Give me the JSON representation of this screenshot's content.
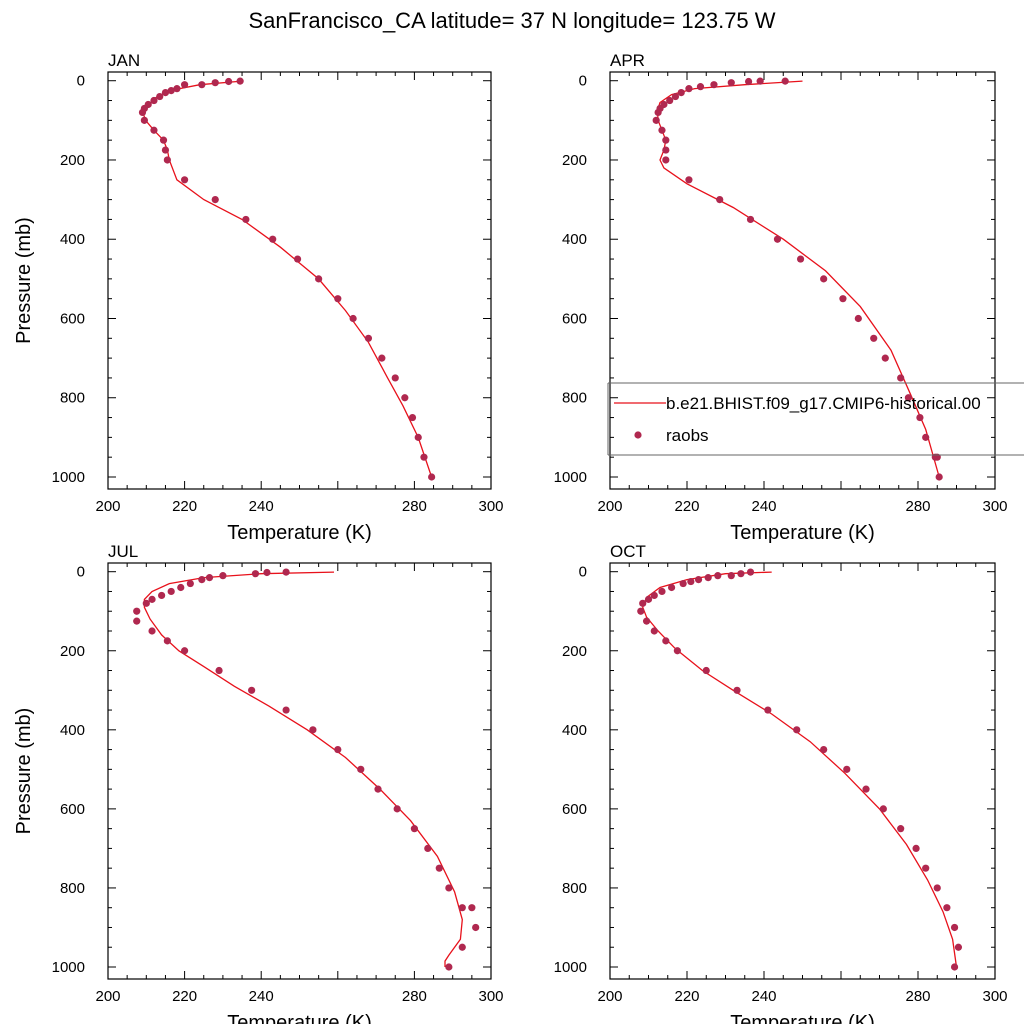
{
  "title": "SanFrancisco_CA  latitude= 37 N longitude= 123.75 W",
  "legend": {
    "line_label": "b.e21.BHIST.f09_g17.CMIP6-historical.00",
    "marker_label": "raobs"
  },
  "colors": {
    "line": "#e8111b",
    "marker": "#b0284f"
  },
  "chart_data": [
    {
      "type": "line",
      "title": "JAN",
      "xlabel": "Temperature (K)",
      "ylabel": "Pressure (mb)",
      "xlim": [
        200,
        300
      ],
      "ylim": [
        1000,
        0
      ],
      "x_ticks": [
        "200",
        "220",
        "240",
        "280",
        "300"
      ],
      "y_ticks": [
        "0",
        "200",
        "400",
        "600",
        "800",
        "1000"
      ],
      "series": [
        {
          "name": "b.e21.BHIST.f09_g17.CMIP6-historical.00",
          "type": "line",
          "x": [
            235.0,
            224.0,
            216.0,
            212.0,
            210.0,
            209.3,
            209.8,
            212.0,
            214.5,
            215.5,
            216.0,
            218.0,
            225.0,
            235.0,
            245.0,
            255.0,
            262.0,
            268.0,
            273.0,
            277.0,
            281.0,
            284.5
          ],
          "y": [
            1,
            10,
            25,
            45,
            70,
            85,
            100,
            125,
            150,
            175,
            200,
            250,
            300,
            350,
            420,
            500,
            580,
            660,
            750,
            820,
            900,
            1000
          ]
        },
        {
          "name": "raobs",
          "type": "scatter",
          "x": [
            234.5,
            231.5,
            228.0,
            224.5,
            220.0,
            218.0,
            216.5,
            215.0,
            213.5,
            212.0,
            210.5,
            209.5,
            209.0,
            209.5,
            212.0,
            214.5,
            215.0,
            215.5,
            220.0,
            228.0,
            236.0,
            243.0,
            249.5,
            255.0,
            260.0,
            264.0,
            268.0,
            271.5,
            275.0,
            277.5,
            279.5,
            281.0,
            282.5,
            284.5
          ],
          "y": [
            1,
            2,
            5,
            10,
            10,
            20,
            25,
            30,
            40,
            50,
            60,
            70,
            80,
            100,
            125,
            150,
            175,
            200,
            250,
            300,
            350,
            400,
            450,
            500,
            550,
            600,
            650,
            700,
            750,
            800,
            850,
            900,
            950,
            1000
          ]
        }
      ]
    },
    {
      "type": "line",
      "title": "APR",
      "xlabel": "Temperature (K)",
      "ylabel": "",
      "xlim": [
        200,
        300
      ],
      "ylim": [
        1000,
        0
      ],
      "x_ticks": [
        "200",
        "220",
        "240",
        "280",
        "300"
      ],
      "y_ticks": [
        "0",
        "200",
        "400",
        "600",
        "800",
        "1000"
      ],
      "series": [
        {
          "name": "b.e21.BHIST.f09_g17.CMIP6-historical.00",
          "type": "line",
          "x": [
            250.0,
            235.0,
            222.0,
            216.0,
            213.0,
            212.3,
            212.5,
            213.5,
            214.5,
            214.0,
            213.0,
            214.0,
            220.0,
            232.0,
            245.0,
            256.0,
            265.0,
            273.0,
            278.0,
            282.0,
            285.5
          ],
          "y": [
            1,
            10,
            20,
            35,
            55,
            75,
            100,
            125,
            150,
            175,
            200,
            220,
            260,
            320,
            400,
            480,
            570,
            680,
            790,
            880,
            1000
          ]
        },
        {
          "name": "raobs",
          "type": "scatter",
          "x": [
            245.5,
            239.0,
            236.0,
            231.5,
            227.0,
            223.5,
            220.5,
            218.5,
            217.0,
            215.5,
            214.0,
            213.0,
            212.5,
            212.0,
            213.5,
            214.5,
            214.5,
            214.5,
            220.5,
            228.5,
            236.5,
            243.5,
            249.5,
            255.5,
            260.5,
            264.5,
            268.5,
            271.5,
            275.5,
            277.5,
            280.5,
            282.0,
            284.5,
            285.0,
            285.5
          ],
          "y": [
            1,
            1,
            2,
            5,
            10,
            15,
            20,
            30,
            40,
            50,
            60,
            70,
            80,
            100,
            125,
            150,
            175,
            200,
            250,
            300,
            350,
            400,
            450,
            500,
            550,
            600,
            650,
            700,
            750,
            800,
            850,
            900,
            950,
            950,
            1000
          ]
        }
      ]
    },
    {
      "type": "line",
      "title": "JUL",
      "xlabel": "Temperature (K)",
      "ylabel": "Pressure (mb)",
      "xlim": [
        200,
        300
      ],
      "ylim": [
        1000,
        0
      ],
      "x_ticks": [
        "200",
        "220",
        "240",
        "280",
        "300"
      ],
      "y_ticks": [
        "0",
        "200",
        "400",
        "600",
        "800",
        "1000"
      ],
      "series": [
        {
          "name": "b.e21.BHIST.f09_g17.CMIP6-historical.00",
          "type": "line",
          "x": [
            259.0,
            240.0,
            225.0,
            216.0,
            211.5,
            209.5,
            209.5,
            211.0,
            214.0,
            218.5,
            225.0,
            233.0,
            242.0,
            252.0,
            262.0,
            271.0,
            279.0,
            286.0,
            290.5,
            292.5,
            292.0,
            289.0,
            288.0,
            288.0
          ],
          "y": [
            1,
            5,
            15,
            30,
            50,
            70,
            90,
            120,
            160,
            200,
            240,
            290,
            340,
            400,
            470,
            550,
            630,
            720,
            810,
            880,
            930,
            970,
            985,
            1000
          ]
        },
        {
          "name": "raobs",
          "type": "scatter",
          "x": [
            246.5,
            241.5,
            238.5,
            230.0,
            226.5,
            224.5,
            221.5,
            219.0,
            216.5,
            214.0,
            211.5,
            210.0,
            207.5,
            207.5,
            211.5,
            215.5,
            220.0,
            229.0,
            237.5,
            246.5,
            253.5,
            260.0,
            266.0,
            270.5,
            275.5,
            280.0,
            283.5,
            286.5,
            289.0,
            292.5,
            295.0,
            296.0,
            292.5,
            289.0
          ],
          "y": [
            1,
            2,
            5,
            10,
            15,
            20,
            30,
            40,
            50,
            60,
            70,
            80,
            100,
            125,
            150,
            175,
            200,
            250,
            300,
            350,
            400,
            450,
            500,
            550,
            600,
            650,
            700,
            750,
            800,
            850,
            850,
            900,
            950,
            1000
          ]
        }
      ]
    },
    {
      "type": "line",
      "title": "OCT",
      "xlabel": "Temperature (K)",
      "ylabel": "",
      "xlim": [
        200,
        300
      ],
      "ylim": [
        1000,
        0
      ],
      "x_ticks": [
        "200",
        "220",
        "240",
        "280",
        "300"
      ],
      "y_ticks": [
        "0",
        "200",
        "400",
        "600",
        "800",
        "1000"
      ],
      "series": [
        {
          "name": "b.e21.BHIST.f09_g17.CMIP6-historical.00",
          "type": "line",
          "x": [
            242.0,
            230.0,
            220.0,
            213.0,
            209.5,
            208.5,
            209.5,
            212.5,
            217.0,
            224.0,
            232.0,
            242.0,
            252.0,
            261.0,
            270.0,
            277.0,
            282.5,
            286.5,
            289.0,
            290.0
          ],
          "y": [
            1,
            5,
            20,
            40,
            65,
            90,
            115,
            150,
            195,
            250,
            300,
            360,
            430,
            510,
            600,
            690,
            780,
            860,
            930,
            1000
          ]
        },
        {
          "name": "raobs",
          "type": "scatter",
          "x": [
            236.5,
            234.0,
            231.5,
            228.0,
            225.5,
            223.0,
            221.0,
            219.0,
            216.0,
            213.5,
            211.5,
            210.0,
            208.5,
            208.0,
            209.5,
            211.5,
            214.5,
            217.5,
            225.0,
            233.0,
            241.0,
            248.5,
            255.5,
            261.5,
            266.5,
            271.0,
            275.5,
            279.5,
            282.0,
            285.0,
            287.5,
            289.5,
            290.5,
            289.5
          ],
          "y": [
            1,
            5,
            10,
            10,
            15,
            20,
            25,
            30,
            40,
            50,
            60,
            70,
            80,
            100,
            125,
            150,
            175,
            200,
            250,
            300,
            350,
            400,
            450,
            500,
            550,
            600,
            650,
            700,
            750,
            800,
            850,
            900,
            950,
            1000
          ]
        }
      ]
    }
  ]
}
